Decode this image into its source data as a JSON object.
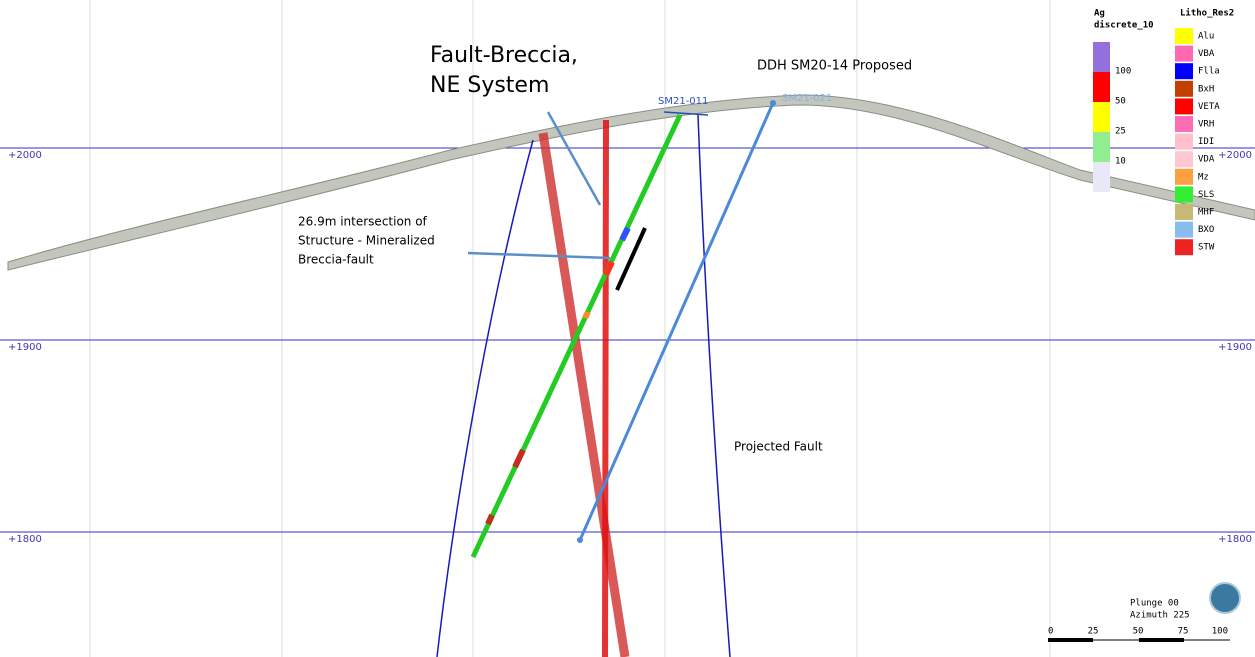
{
  "annotations": {
    "fault_breccia": [
      "Fault-Breccia,",
      "NE System"
    ],
    "proposed_hole": "DDH SM20-14 Proposed",
    "intersection": [
      "26.9m intersection of",
      "Structure - Mineralized",
      "Breccia-fault"
    ],
    "projected_fault": "Projected Fault"
  },
  "drill_holes": [
    "SM21-011",
    "SM21-021"
  ],
  "elevation_labels": [
    "+2000",
    "+1900",
    "+1800"
  ],
  "ag_legend": {
    "title": [
      "Ag",
      "discrete_10"
    ],
    "items": [
      {
        "label": "100",
        "color": "#9370db"
      },
      {
        "label": "50",
        "color": "#ff0000"
      },
      {
        "label": "25",
        "color": "#ffff00"
      },
      {
        "label": "10",
        "color": "#90ee90"
      }
    ]
  },
  "litho_legend": {
    "title": "Litho_Res2",
    "items": [
      {
        "label": "Alu",
        "color": "#ffff00"
      },
      {
        "label": "VBA",
        "color": "#ff69b4"
      },
      {
        "label": "Flla",
        "color": "#0000ff"
      },
      {
        "label": "BxH",
        "color": "#c04000"
      },
      {
        "label": "VETA",
        "color": "#ff0000"
      },
      {
        "label": "VRH",
        "color": "#ff6eb4"
      },
      {
        "label": "IDI",
        "color": "#ffc0cb"
      },
      {
        "label": "VDA",
        "color": "#ffc8d0"
      },
      {
        "label": "Mz",
        "color": "#ffa040"
      },
      {
        "label": "SLS",
        "color": "#33ee33"
      },
      {
        "label": "MHF",
        "color": "#c8b878"
      },
      {
        "label": "BXO",
        "color": "#88bbee"
      },
      {
        "label": "STW",
        "color": "#ee2222"
      }
    ]
  },
  "view": {
    "plunge": "Plunge 00",
    "azimuth": "Azimuth 225"
  },
  "scale_labels": [
    "0",
    "25",
    "50",
    "75",
    "100"
  ]
}
